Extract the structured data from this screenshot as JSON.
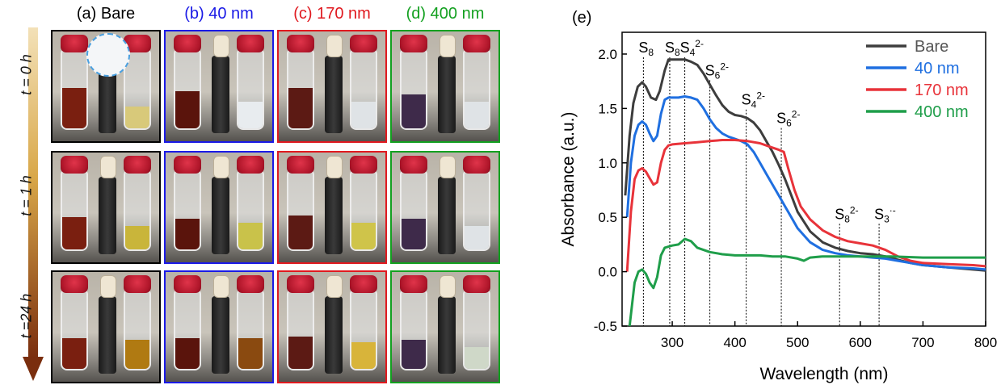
{
  "photo_panel": {
    "columns": [
      {
        "label": "(a) Bare",
        "color": "#000000"
      },
      {
        "label": "(b) 40 nm",
        "color": "#1a1ae6"
      },
      {
        "label": "(c) 170 nm",
        "color": "#e0191f"
      },
      {
        "label": "(d) 400 nm",
        "color": "#13a020"
      }
    ],
    "time_labels": [
      "t = 0 h",
      "t = 1 h",
      "t =24 h"
    ],
    "arrow_color": "#7a2e0e"
  },
  "chart_data": {
    "type": "line",
    "panel_label": "(e)",
    "xlabel": "Wavelength (nm)",
    "ylabel": "Absorbance (a.u.)",
    "xlim": [
      220,
      800
    ],
    "ylim": [
      -0.5,
      2.2
    ],
    "xticks": [
      300,
      400,
      500,
      600,
      700,
      800
    ],
    "yticks": [
      -0.5,
      0.0,
      0.5,
      1.0,
      1.5,
      2.0
    ],
    "grid": false,
    "legend_position": "top-right",
    "series": [
      {
        "name": "Bare",
        "color": "#3d3d3d",
        "x": [
          225,
          232,
          238,
          245,
          252,
          258,
          266,
          274,
          280,
          288,
          294,
          300,
          310,
          320,
          330,
          340,
          350,
          360,
          370,
          380,
          390,
          400,
          410,
          420,
          430,
          440,
          450,
          460,
          470,
          480,
          490,
          500,
          520,
          540,
          560,
          580,
          600,
          620,
          640,
          660,
          680,
          700,
          740,
          780,
          800
        ],
        "y": [
          0.7,
          1.25,
          1.55,
          1.7,
          1.74,
          1.7,
          1.6,
          1.58,
          1.66,
          1.85,
          1.95,
          1.95,
          1.95,
          1.95,
          1.93,
          1.9,
          1.82,
          1.72,
          1.62,
          1.53,
          1.47,
          1.44,
          1.43,
          1.41,
          1.37,
          1.3,
          1.2,
          1.1,
          0.98,
          0.85,
          0.7,
          0.55,
          0.37,
          0.27,
          0.22,
          0.19,
          0.17,
          0.16,
          0.14,
          0.11,
          0.08,
          0.06,
          0.04,
          0.02,
          0.01
        ]
      },
      {
        "name": "40 nm",
        "color": "#1f6fe0",
        "x": [
          228,
          234,
          240,
          246,
          252,
          258,
          264,
          270,
          276,
          282,
          288,
          294,
          300,
          310,
          320,
          330,
          340,
          350,
          360,
          370,
          380,
          390,
          400,
          410,
          420,
          430,
          440,
          450,
          460,
          470,
          480,
          490,
          500,
          520,
          540,
          560,
          580,
          600,
          620,
          640,
          660,
          680,
          700,
          740,
          780,
          800
        ],
        "y": [
          0.5,
          1.0,
          1.25,
          1.35,
          1.38,
          1.35,
          1.27,
          1.2,
          1.25,
          1.45,
          1.58,
          1.6,
          1.6,
          1.6,
          1.61,
          1.6,
          1.58,
          1.5,
          1.4,
          1.32,
          1.27,
          1.24,
          1.22,
          1.2,
          1.17,
          1.1,
          1.0,
          0.9,
          0.8,
          0.7,
          0.6,
          0.5,
          0.4,
          0.27,
          0.2,
          0.17,
          0.15,
          0.14,
          0.13,
          0.12,
          0.1,
          0.08,
          0.06,
          0.04,
          0.03,
          0.02
        ]
      },
      {
        "name": "170 nm",
        "color": "#e8333a",
        "x": [
          228,
          234,
          240,
          246,
          252,
          258,
          264,
          270,
          276,
          282,
          288,
          294,
          300,
          320,
          340,
          360,
          380,
          400,
          420,
          440,
          460,
          470,
          478,
          485,
          495,
          505,
          520,
          540,
          560,
          580,
          600,
          620,
          640,
          660,
          680,
          700,
          740,
          780,
          800
        ],
        "y": [
          0.0,
          0.55,
          0.85,
          0.93,
          0.95,
          0.92,
          0.86,
          0.8,
          0.82,
          1.0,
          1.12,
          1.16,
          1.17,
          1.18,
          1.19,
          1.2,
          1.21,
          1.21,
          1.2,
          1.18,
          1.14,
          1.12,
          1.1,
          0.95,
          0.75,
          0.6,
          0.48,
          0.38,
          0.32,
          0.28,
          0.26,
          0.24,
          0.2,
          0.14,
          0.1,
          0.08,
          0.07,
          0.06,
          0.05
        ]
      },
      {
        "name": "400 nm",
        "color": "#1f9e4a",
        "x": [
          232,
          236,
          240,
          246,
          252,
          258,
          264,
          270,
          276,
          282,
          288,
          294,
          300,
          310,
          320,
          330,
          340,
          360,
          380,
          400,
          420,
          440,
          460,
          480,
          500,
          510,
          520,
          540,
          560,
          600,
          650,
          700,
          750,
          800
        ],
        "y": [
          -0.5,
          -0.3,
          -0.1,
          0.0,
          0.02,
          -0.02,
          -0.1,
          -0.15,
          -0.05,
          0.15,
          0.22,
          0.23,
          0.24,
          0.25,
          0.3,
          0.28,
          0.22,
          0.18,
          0.16,
          0.15,
          0.15,
          0.15,
          0.14,
          0.14,
          0.12,
          0.1,
          0.13,
          0.14,
          0.14,
          0.14,
          0.14,
          0.13,
          0.13,
          0.13
        ]
      }
    ],
    "annotations": [
      {
        "x": 254,
        "y_top": 1.97,
        "species": "S",
        "sub": "8",
        "sup": ""
      },
      {
        "x": 296,
        "y_top": 1.97,
        "species": "S",
        "sub": "8",
        "sup": ""
      },
      {
        "x": 320,
        "y_top": 1.97,
        "species": "S",
        "sub": "4",
        "sup": "2-"
      },
      {
        "x": 360,
        "y_top": 1.76,
        "species": "S",
        "sub": "6",
        "sup": "2-"
      },
      {
        "x": 418,
        "y_top": 1.49,
        "species": "S",
        "sub": "4",
        "sup": "2-"
      },
      {
        "x": 474,
        "y_top": 1.32,
        "species": "S",
        "sub": "6",
        "sup": "2-"
      },
      {
        "x": 567,
        "y_top": 0.44,
        "species": "S",
        "sub": "8",
        "sup": "2-"
      },
      {
        "x": 630,
        "y_top": 0.44,
        "species": "S",
        "sub": "3",
        "sup": "·-"
      }
    ]
  }
}
